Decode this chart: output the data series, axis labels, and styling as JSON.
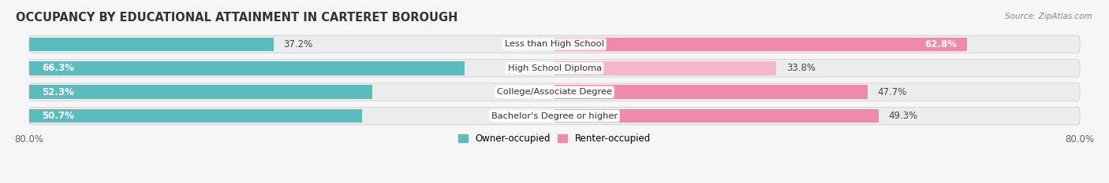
{
  "title": "OCCUPANCY BY EDUCATIONAL ATTAINMENT IN CARTERET BOROUGH",
  "source": "Source: ZipAtlas.com",
  "categories": [
    "Less than High School",
    "High School Diploma",
    "College/Associate Degree",
    "Bachelor's Degree or higher"
  ],
  "owner_pct": [
    37.2,
    66.3,
    52.3,
    50.7
  ],
  "renter_pct": [
    62.8,
    33.8,
    47.7,
    49.3
  ],
  "owner_color": "#5bbcbe",
  "renter_color": "#f08aaa",
  "renter_color_light": "#f5b8cb",
  "row_bg_color": "#e8e8e8",
  "label_bg": "#ffffff",
  "axis_label_left": "80.0%",
  "axis_label_right": "80.0%",
  "legend_owner": "Owner-occupied",
  "legend_renter": "Renter-occupied",
  "title_fontsize": 10.5,
  "label_fontsize": 8.5,
  "tick_fontsize": 8.5,
  "background_color": "#f5f5f5",
  "max_val": 80.0
}
